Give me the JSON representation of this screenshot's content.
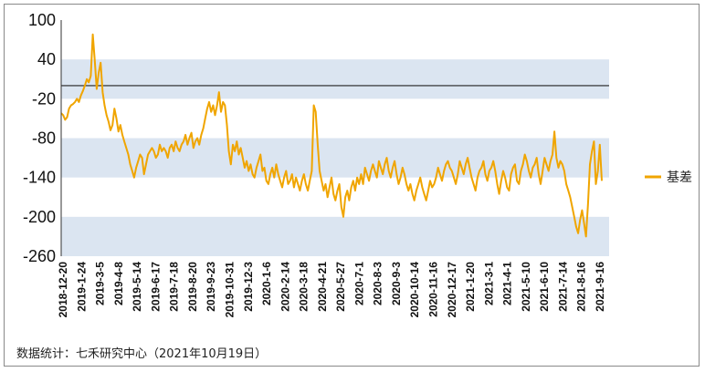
{
  "source_note": "数据统计：七禾研究中心（2021年10月19日）",
  "colors": {
    "line": "#f0a500",
    "band": "#dbe5f1",
    "zero_line": "#222222"
  },
  "chart_data": {
    "type": "line",
    "title": "",
    "xlabel": "",
    "ylabel": "",
    "ylim": [
      -260,
      100
    ],
    "yticks": [
      100,
      40,
      -20,
      -80,
      -140,
      -200,
      -260
    ],
    "bands": [
      [
        -20,
        40
      ],
      [
        -140,
        -80
      ],
      [
        -260,
        -200
      ]
    ],
    "reference_line": 0,
    "grid": false,
    "legend_position": "right",
    "x_tick_labels": [
      "2018-12-20",
      "2019-1-24",
      "2019-3-5",
      "2019-4-8",
      "2019-5-14",
      "2019-6-17",
      "2019-7-18",
      "2019-8-20",
      "2019-9-23",
      "2019-10-31",
      "2019-12-3",
      "2020-1-6",
      "2020-2-14",
      "2020-3-18",
      "2020-4-21",
      "2020-5-27",
      "2020-7-1",
      "2020-8-3",
      "2020-9-3",
      "2020-10-14",
      "2020-11-16",
      "2020-12-17",
      "2021-1-20",
      "2021-3-1",
      "2021-4-1",
      "2021-5-10",
      "2021-6-10",
      "2021-7-14",
      "2021-8-16",
      "2021-9-16"
    ],
    "series": [
      {
        "name": "基差",
        "color": "#f0a500",
        "values": [
          -42,
          -45,
          -52,
          -48,
          -35,
          -30,
          -28,
          -25,
          -20,
          -25,
          -15,
          -8,
          0,
          10,
          5,
          15,
          78,
          40,
          -5,
          20,
          35,
          -10,
          -30,
          -45,
          -55,
          -68,
          -60,
          -35,
          -50,
          -70,
          -60,
          -75,
          -85,
          -95,
          -105,
          -120,
          -130,
          -140,
          -125,
          -115,
          -105,
          -110,
          -135,
          -120,
          -105,
          -100,
          -95,
          -100,
          -110,
          -105,
          -90,
          -100,
          -95,
          -100,
          -110,
          -95,
          -90,
          -100,
          -85,
          -95,
          -100,
          -90,
          -85,
          -75,
          -90,
          -80,
          -72,
          -95,
          -85,
          -80,
          -90,
          -75,
          -65,
          -50,
          -35,
          -25,
          -40,
          -30,
          -45,
          -30,
          -10,
          -40,
          -25,
          -30,
          -60,
          -100,
          -120,
          -90,
          -100,
          -85,
          -105,
          -95,
          -110,
          -125,
          -115,
          -130,
          -120,
          -135,
          -140,
          -125,
          -115,
          -105,
          -130,
          -125,
          -145,
          -150,
          -135,
          -125,
          -140,
          -120,
          -135,
          -145,
          -155,
          -140,
          -130,
          -150,
          -145,
          -135,
          -155,
          -140,
          -150,
          -160,
          -145,
          -135,
          -150,
          -160,
          -145,
          -130,
          -30,
          -40,
          -90,
          -130,
          -145,
          -160,
          -150,
          -170,
          -155,
          -140,
          -165,
          -175,
          -160,
          -150,
          -185,
          -200,
          -170,
          -160,
          -175,
          -155,
          -145,
          -160,
          -140,
          -150,
          -135,
          -150,
          -125,
          -135,
          -145,
          -130,
          -120,
          -130,
          -140,
          -115,
          -125,
          -135,
          -120,
          -110,
          -130,
          -140,
          -125,
          -115,
          -135,
          -150,
          -140,
          -125,
          -135,
          -150,
          -160,
          -150,
          -165,
          -175,
          -160,
          -150,
          -140,
          -155,
          -165,
          -175,
          -160,
          -145,
          -155,
          -150,
          -140,
          -125,
          -135,
          -145,
          -130,
          -120,
          -115,
          -125,
          -130,
          -140,
          -150,
          -135,
          -115,
          -125,
          -135,
          -120,
          -110,
          -125,
          -140,
          -150,
          -160,
          -140,
          -130,
          -125,
          -115,
          -135,
          -145,
          -130,
          -125,
          -115,
          -130,
          -150,
          -165,
          -145,
          -130,
          -140,
          -155,
          -160,
          -135,
          -125,
          -120,
          -145,
          -150,
          -130,
          -120,
          -105,
          -115,
          -130,
          -140,
          -125,
          -120,
          -110,
          -135,
          -150,
          -130,
          -110,
          -120,
          -130,
          -115,
          -105,
          -70,
          -110,
          -125,
          -115,
          -120,
          -130,
          -150,
          -160,
          -170,
          -185,
          -200,
          -215,
          -225,
          -205,
          -190,
          -210,
          -230,
          -180,
          -120,
          -100,
          -85,
          -150,
          -130,
          -90,
          -145
        ]
      }
    ]
  }
}
